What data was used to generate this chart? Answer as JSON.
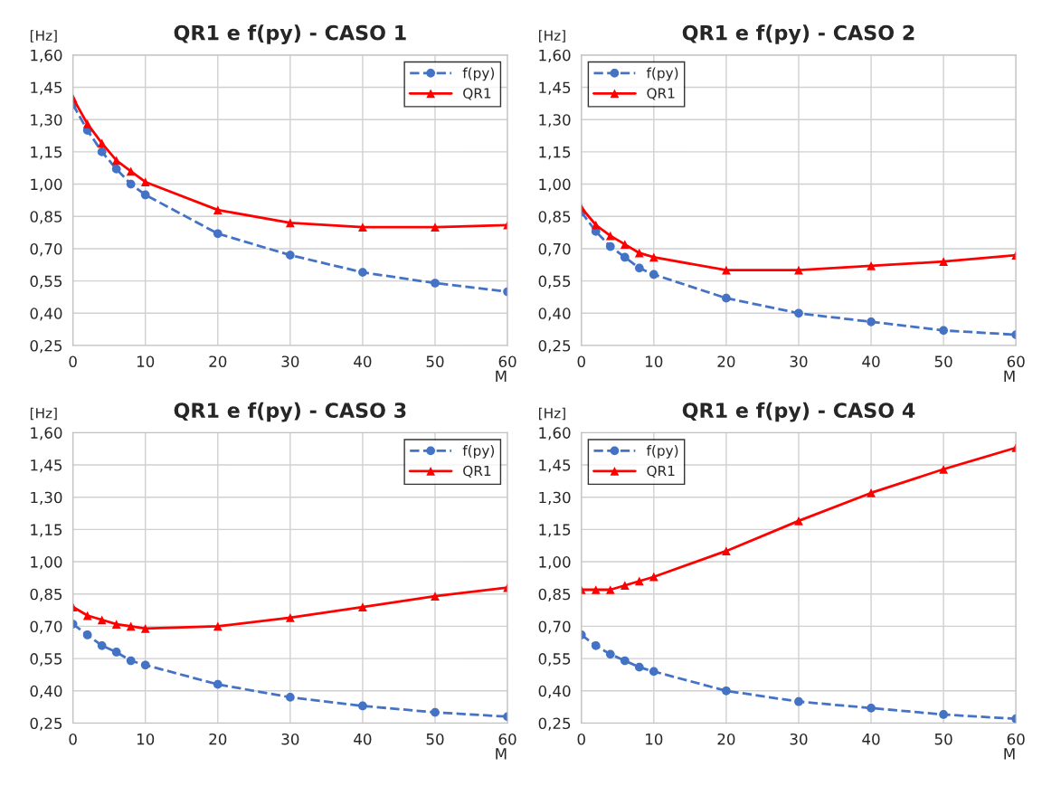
{
  "chart_data": [
    {
      "type": "line",
      "title": "QR1 e f(py) - CASO 1",
      "xlabel": "M",
      "ylabel": "[Hz]",
      "x": [
        0,
        2,
        4,
        6,
        8,
        10,
        20,
        30,
        40,
        50,
        60
      ],
      "series": [
        {
          "name": "f(py)",
          "color": "#4472c4",
          "marker": "circle",
          "line_style": "dashed",
          "values": [
            1.37,
            1.25,
            1.15,
            1.07,
            1.0,
            0.95,
            0.77,
            0.67,
            0.59,
            0.54,
            0.5
          ]
        },
        {
          "name": "QR1",
          "color": "#ff0000",
          "marker": "triangle",
          "line_style": "solid",
          "values": [
            1.4,
            1.28,
            1.19,
            1.11,
            1.06,
            1.01,
            0.88,
            0.82,
            0.8,
            0.8,
            0.81
          ]
        }
      ],
      "xlim": [
        0,
        60
      ],
      "xticks": [
        0,
        10,
        20,
        30,
        40,
        50,
        60
      ],
      "ylim": [
        0.25,
        1.6
      ],
      "yticks": [
        {
          "value": 0.25,
          "label": "0,25"
        },
        {
          "value": 0.4,
          "label": "0,40"
        },
        {
          "value": 0.55,
          "label": "0,55"
        },
        {
          "value": 0.7,
          "label": "0,70"
        },
        {
          "value": 0.85,
          "label": "0,85"
        },
        {
          "value": 1.0,
          "label": "1,00"
        },
        {
          "value": 1.15,
          "label": "1,15"
        },
        {
          "value": 1.3,
          "label": "1,30"
        },
        {
          "value": 1.45,
          "label": "1,45"
        },
        {
          "value": 1.6,
          "label": "1,60"
        }
      ],
      "grid": true,
      "legend": "top right"
    },
    {
      "type": "line",
      "title": "QR1 e f(py) - CASO 2",
      "xlabel": "M",
      "ylabel": "[Hz]",
      "x": [
        0,
        2,
        4,
        6,
        8,
        10,
        20,
        30,
        40,
        50,
        60
      ],
      "series": [
        {
          "name": "f(py)",
          "color": "#4472c4",
          "marker": "circle",
          "line_style": "dashed",
          "values": [
            0.87,
            0.78,
            0.71,
            0.66,
            0.61,
            0.58,
            0.47,
            0.4,
            0.36,
            0.32,
            0.3
          ]
        },
        {
          "name": "QR1",
          "color": "#ff0000",
          "marker": "triangle",
          "line_style": "solid",
          "values": [
            0.89,
            0.81,
            0.76,
            0.72,
            0.68,
            0.66,
            0.6,
            0.6,
            0.62,
            0.64,
            0.67
          ]
        }
      ],
      "xlim": [
        0,
        60
      ],
      "xticks": [
        0,
        10,
        20,
        30,
        40,
        50,
        60
      ],
      "ylim": [
        0.25,
        1.6
      ],
      "yticks": [
        {
          "value": 0.25,
          "label": "0,25"
        },
        {
          "value": 0.4,
          "label": "0,40"
        },
        {
          "value": 0.55,
          "label": "0,55"
        },
        {
          "value": 0.7,
          "label": "0,70"
        },
        {
          "value": 0.85,
          "label": "0,85"
        },
        {
          "value": 1.0,
          "label": "1,00"
        },
        {
          "value": 1.15,
          "label": "1,15"
        },
        {
          "value": 1.3,
          "label": "1,30"
        },
        {
          "value": 1.45,
          "label": "1,45"
        },
        {
          "value": 1.6,
          "label": "1,60"
        }
      ],
      "grid": true,
      "legend": "top left"
    },
    {
      "type": "line",
      "title": "QR1 e f(py) - CASO 3",
      "xlabel": "M",
      "ylabel": "[Hz]",
      "x": [
        0,
        2,
        4,
        6,
        8,
        10,
        20,
        30,
        40,
        50,
        60
      ],
      "series": [
        {
          "name": "f(py)",
          "color": "#4472c4",
          "marker": "circle",
          "line_style": "dashed",
          "values": [
            0.71,
            0.66,
            0.61,
            0.58,
            0.54,
            0.52,
            0.43,
            0.37,
            0.33,
            0.3,
            0.28
          ]
        },
        {
          "name": "QR1",
          "color": "#ff0000",
          "marker": "triangle",
          "line_style": "solid",
          "values": [
            0.79,
            0.75,
            0.73,
            0.71,
            0.7,
            0.69,
            0.7,
            0.74,
            0.79,
            0.84,
            0.88
          ]
        }
      ],
      "xlim": [
        0,
        60
      ],
      "xticks": [
        0,
        10,
        20,
        30,
        40,
        50,
        60
      ],
      "ylim": [
        0.25,
        1.6
      ],
      "yticks": [
        {
          "value": 0.25,
          "label": "0,25"
        },
        {
          "value": 0.4,
          "label": "0,40"
        },
        {
          "value": 0.55,
          "label": "0,55"
        },
        {
          "value": 0.7,
          "label": "0,70"
        },
        {
          "value": 0.85,
          "label": "0,85"
        },
        {
          "value": 1.0,
          "label": "1,00"
        },
        {
          "value": 1.15,
          "label": "1,15"
        },
        {
          "value": 1.3,
          "label": "1,30"
        },
        {
          "value": 1.45,
          "label": "1,45"
        },
        {
          "value": 1.6,
          "label": "1,60"
        }
      ],
      "grid": true,
      "legend": "top right"
    },
    {
      "type": "line",
      "title": "QR1 e f(py) - CASO 4",
      "xlabel": "M",
      "ylabel": "[Hz]",
      "x": [
        0,
        2,
        4,
        6,
        8,
        10,
        20,
        30,
        40,
        50,
        60
      ],
      "series": [
        {
          "name": "f(py)",
          "color": "#4472c4",
          "marker": "circle",
          "line_style": "dashed",
          "values": [
            0.66,
            0.61,
            0.57,
            0.54,
            0.51,
            0.49,
            0.4,
            0.35,
            0.32,
            0.29,
            0.27
          ]
        },
        {
          "name": "QR1",
          "color": "#ff0000",
          "marker": "triangle",
          "line_style": "solid",
          "values": [
            0.87,
            0.87,
            0.87,
            0.89,
            0.91,
            0.93,
            1.05,
            1.19,
            1.32,
            1.43,
            1.53
          ]
        }
      ],
      "xlim": [
        0,
        60
      ],
      "xticks": [
        0,
        10,
        20,
        30,
        40,
        50,
        60
      ],
      "ylim": [
        0.25,
        1.6
      ],
      "yticks": [
        {
          "value": 0.25,
          "label": "0,25"
        },
        {
          "value": 0.4,
          "label": "0,40"
        },
        {
          "value": 0.55,
          "label": "0,55"
        },
        {
          "value": 0.7,
          "label": "0,70"
        },
        {
          "value": 0.85,
          "label": "0,85"
        },
        {
          "value": 1.0,
          "label": "1,00"
        },
        {
          "value": 1.15,
          "label": "1,15"
        },
        {
          "value": 1.3,
          "label": "1,30"
        },
        {
          "value": 1.45,
          "label": "1,45"
        },
        {
          "value": 1.6,
          "label": "1,60"
        }
      ],
      "grid": true,
      "legend": "top left"
    }
  ]
}
